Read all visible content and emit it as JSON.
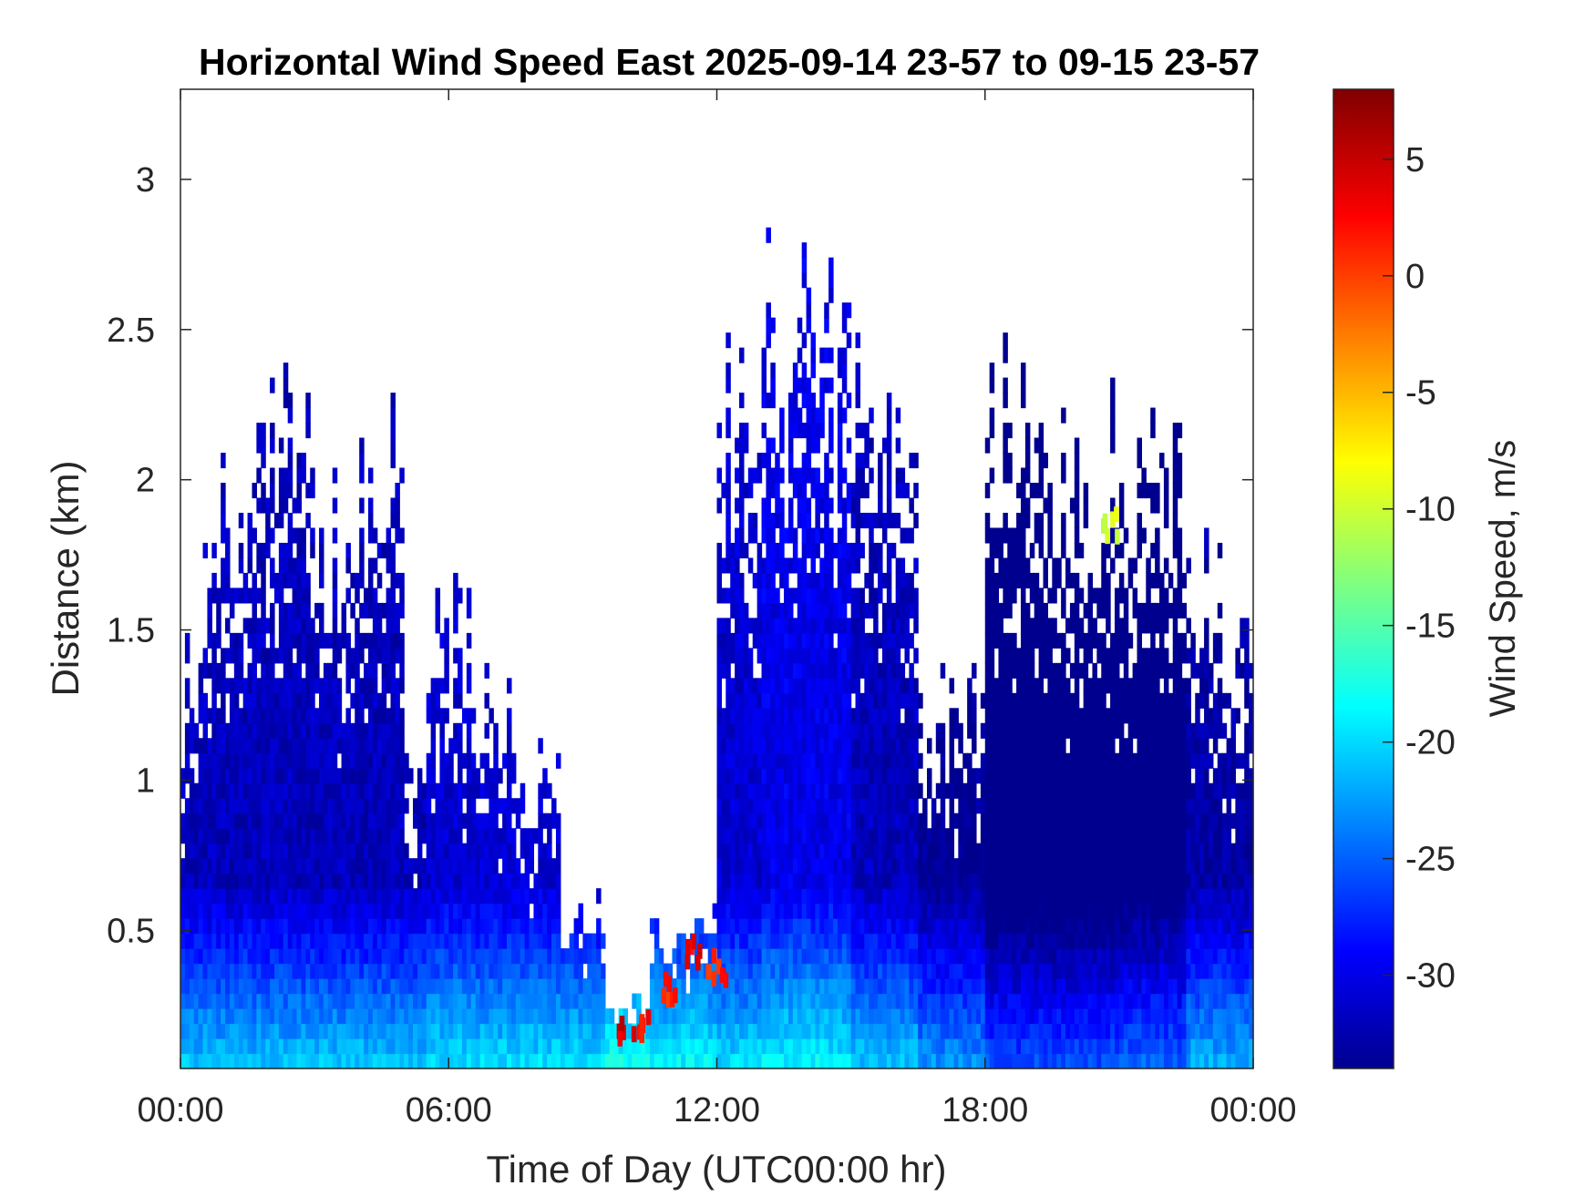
{
  "chart_data": {
    "type": "heatmap",
    "title": "Horizontal Wind Speed East 2025-09-14 23-57 to 09-15 23-57",
    "xlabel": "Time of Day (UTC00:00 hr)",
    "ylabel": "Distance (km)",
    "colorbar_label": "Wind Speed, m/s",
    "x_ticks": [
      "00:00",
      "06:00",
      "12:00",
      "18:00",
      "00:00"
    ],
    "x_tick_hours": [
      0,
      6,
      12,
      18,
      24
    ],
    "xlim_hours": [
      0,
      24
    ],
    "y_ticks": [
      0.5,
      1,
      1.5,
      2,
      2.5,
      3
    ],
    "y_tick_labels": [
      "0.5",
      "1",
      "1.5",
      "2",
      "2.5",
      "3"
    ],
    "ylim": [
      0.04,
      3.3
    ],
    "colorbar_ticks": [
      5,
      0,
      -5,
      -10,
      -15,
      -20,
      -25,
      -30
    ],
    "colorbar_tick_labels": [
      "5",
      "0",
      "-5",
      "-10",
      "-15",
      "-20",
      "-25",
      "-30"
    ],
    "clim": [
      -34,
      8
    ],
    "colormap": "jet",
    "colormap_stops": [
      "#00008f",
      "#0000ff",
      "#00ffff",
      "#ffff00",
      "#ff0000",
      "#800000"
    ],
    "columns": [
      {
        "start_h": 0.0,
        "end_h": 0.5,
        "top_km": 1.3,
        "surface_ms": -21
      },
      {
        "start_h": 0.5,
        "end_h": 2.0,
        "top_km": 1.9,
        "surface_ms": -21
      },
      {
        "start_h": 2.0,
        "end_h": 3.0,
        "top_km": 2.3,
        "surface_ms": -21
      },
      {
        "start_h": 3.0,
        "end_h": 4.0,
        "top_km": 1.8,
        "surface_ms": -21
      },
      {
        "start_h": 4.0,
        "end_h": 5.0,
        "top_km": 2.0,
        "surface_ms": -21
      },
      {
        "start_h": 5.0,
        "end_h": 5.5,
        "top_km": 1.1,
        "surface_ms": -21
      },
      {
        "start_h": 5.5,
        "end_h": 6.5,
        "top_km": 1.5,
        "surface_ms": -20
      },
      {
        "start_h": 6.5,
        "end_h": 7.5,
        "top_km": 1.3,
        "surface_ms": -20
      },
      {
        "start_h": 7.5,
        "end_h": 8.5,
        "top_km": 1.0,
        "surface_ms": -20
      },
      {
        "start_h": 8.5,
        "end_h": 9.5,
        "top_km": 0.55,
        "surface_ms": -20
      },
      {
        "start_h": 9.5,
        "end_h": 10.5,
        "top_km": 0.25,
        "surface_ms": -18
      },
      {
        "start_h": 10.5,
        "end_h": 12.0,
        "top_km": 0.5,
        "surface_ms": -19
      },
      {
        "start_h": 12.0,
        "end_h": 13.0,
        "top_km": 2.2,
        "surface_ms": -20
      },
      {
        "start_h": 13.0,
        "end_h": 15.0,
        "top_km": 2.5,
        "surface_ms": -19
      },
      {
        "start_h": 15.0,
        "end_h": 16.5,
        "top_km": 2.3,
        "surface_ms": -21
      },
      {
        "start_h": 16.5,
        "end_h": 18.0,
        "top_km": 1.3,
        "surface_ms": -23
      },
      {
        "start_h": 18.0,
        "end_h": 19.5,
        "top_km": 2.2,
        "surface_ms": -26
      },
      {
        "start_h": 19.5,
        "end_h": 21.0,
        "top_km": 2.0,
        "surface_ms": -26
      },
      {
        "start_h": 21.0,
        "end_h": 22.5,
        "top_km": 2.1,
        "surface_ms": -25
      },
      {
        "start_h": 22.5,
        "end_h": 24.0,
        "top_km": 1.6,
        "surface_ms": -22
      }
    ],
    "hotspots": [
      {
        "time_h": 10.0,
        "height_km": 0.15,
        "value_ms": 4
      },
      {
        "time_h": 10.3,
        "height_km": 0.2,
        "value_ms": 2
      },
      {
        "time_h": 11.0,
        "height_km": 0.3,
        "value_ms": 1
      },
      {
        "time_h": 11.5,
        "height_km": 0.42,
        "value_ms": 3
      },
      {
        "time_h": 12.0,
        "height_km": 0.38,
        "value_ms": 1
      },
      {
        "time_h": 20.8,
        "height_km": 1.85,
        "value_ms": -9
      }
    ],
    "grid": false,
    "legend": "none"
  }
}
